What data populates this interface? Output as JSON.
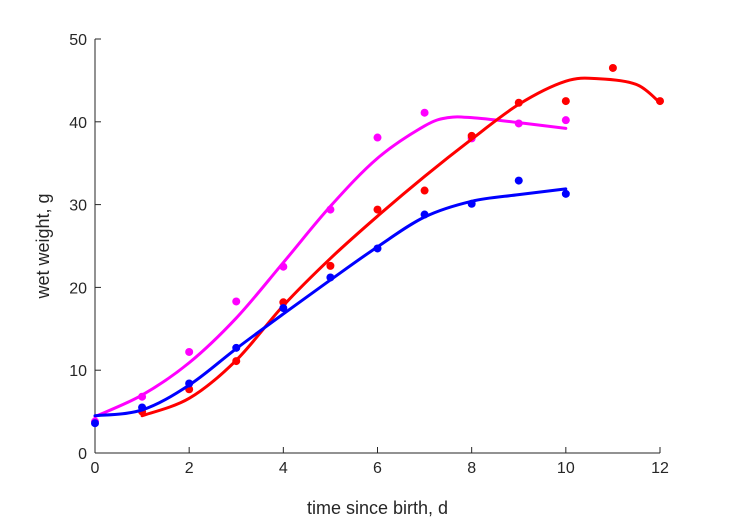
{
  "chart_data": {
    "type": "scatter",
    "title": "",
    "xlabel": "time since birth, d",
    "ylabel": "wet weight, g",
    "xlim": [
      0,
      12
    ],
    "ylim": [
      0,
      50
    ],
    "xticks": [
      0,
      2,
      4,
      6,
      8,
      10,
      12
    ],
    "yticks": [
      0,
      10,
      20,
      30,
      40,
      50
    ],
    "grid": false,
    "legend": "none",
    "series": [
      {
        "color": "#ff00ff",
        "points": {
          "x": [
            0,
            1,
            2,
            3,
            4,
            5,
            6,
            7,
            8,
            9,
            10
          ],
          "y": [
            3.8,
            6.8,
            12.2,
            18.3,
            22.5,
            29.4,
            38.1,
            41.1,
            38.0,
            39.8,
            40.2
          ]
        },
        "fit": {
          "x": [
            0,
            1,
            2,
            3,
            4,
            5,
            6,
            7,
            7.5,
            8,
            9,
            10
          ],
          "y": [
            4.4,
            7.0,
            10.9,
            16.3,
            23.0,
            29.8,
            35.6,
            39.5,
            40.5,
            40.5,
            39.9,
            39.2
          ]
        }
      },
      {
        "color": "#ff0000",
        "points": {
          "x": [
            1,
            2,
            3,
            4,
            5,
            6,
            7,
            8,
            9,
            10,
            11,
            12
          ],
          "y": [
            5.0,
            7.7,
            11.1,
            18.2,
            22.6,
            29.4,
            31.7,
            38.3,
            42.3,
            42.5,
            46.5,
            42.5
          ]
        },
        "fit": {
          "x": [
            1,
            2,
            3,
            4,
            5,
            6,
            7,
            8,
            9,
            10,
            10.7,
            11.5,
            12
          ],
          "y": [
            4.5,
            6.6,
            11.2,
            17.8,
            23.5,
            28.6,
            33.4,
            37.9,
            42.1,
            44.9,
            45.2,
            44.5,
            42.3
          ]
        }
      },
      {
        "color": "#0000ff",
        "points": {
          "x": [
            0,
            1,
            2,
            3,
            4,
            5,
            6,
            7,
            8,
            9,
            10
          ],
          "y": [
            3.6,
            5.5,
            8.4,
            12.7,
            17.5,
            21.2,
            24.7,
            28.8,
            30.1,
            32.9,
            31.3
          ]
        },
        "fit": {
          "x": [
            0,
            1,
            2,
            3,
            4,
            5,
            6,
            7,
            8,
            9,
            10
          ],
          "y": [
            4.5,
            5.2,
            8.2,
            12.6,
            16.8,
            20.9,
            24.9,
            28.5,
            30.4,
            31.2,
            31.9
          ]
        }
      }
    ]
  }
}
